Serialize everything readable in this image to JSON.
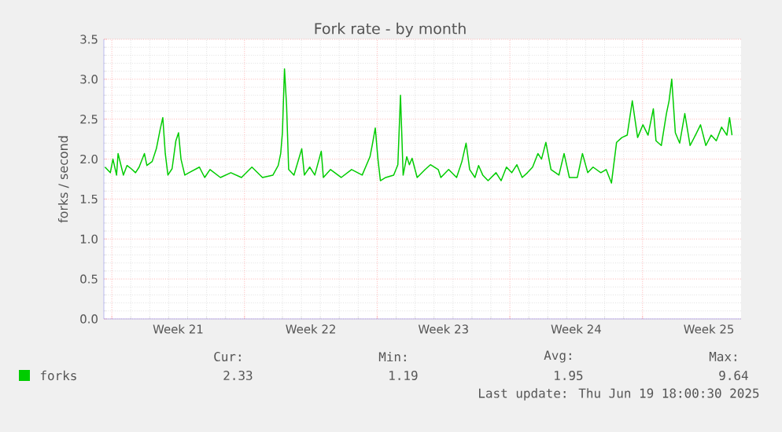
{
  "chart_data": {
    "type": "line",
    "title": "Fork rate - by month",
    "ylabel": "forks / second",
    "xlim": [
      "2025-05-17T13:55",
      "2025-06-20T04:48"
    ],
    "ylim": [
      0,
      3.5
    ],
    "xticks": [
      {
        "value": "2025-05-18T00:00",
        "label": null
      },
      {
        "value": "2025-05-21T12:00",
        "label": "Week 21"
      },
      {
        "value": "2025-05-25T00:00",
        "label": null
      },
      {
        "value": "2025-05-28T12:00",
        "label": "Week 22"
      },
      {
        "value": "2025-06-01T00:00",
        "label": null
      },
      {
        "value": "2025-06-04T12:00",
        "label": "Week 23"
      },
      {
        "value": "2025-06-08T00:00",
        "label": null
      },
      {
        "value": "2025-06-11T12:00",
        "label": "Week 24"
      },
      {
        "value": "2025-06-15T00:00",
        "label": null
      },
      {
        "value": "2025-06-18T12:00",
        "label": "Week 25"
      }
    ],
    "yticks": [
      {
        "value": 0,
        "label": "0.0"
      },
      0.5,
      {
        "value": 1,
        "label": "1.0"
      },
      1.5,
      {
        "value": 2,
        "label": "2.0"
      },
      2.5,
      {
        "value": 3,
        "label": "3.0"
      },
      3.5
    ],
    "grid": true,
    "legend": "bottom",
    "annotations": [
      "Cur:",
      "2.33",
      "Min:",
      "1.19",
      "Avg:",
      "1.95",
      "Max:",
      "9.64",
      "Last update: Thu Jun 19 18:00:30 2025"
    ],
    "series": [
      {
        "name": "forks",
        "color": "#00cc00",
        "x": [
          "2025-05-17T15:22",
          "2025-05-17T22:05",
          "2025-05-18T01:26",
          "2025-05-18T06:00",
          "2025-05-18T07:55",
          "2025-05-18T14:38",
          "2025-05-18T19:12",
          "2025-05-19T00:29",
          "2025-05-19T06:00",
          "2025-05-19T10:34",
          "2025-05-19T17:17",
          "2025-05-19T20:24",
          "2025-05-20T03:07",
          "2025-05-20T08:24",
          "2025-05-20T13:12",
          "2025-05-20T16:34",
          "2025-05-20T19:41",
          "2025-05-20T23:02",
          "2025-05-21T04:19",
          "2025-05-21T09:07",
          "2025-05-21T12:29",
          "2025-05-21T15:36",
          "2025-05-21T20:24",
          "2025-05-22T01:41",
          "2025-05-22T14:53",
          "2025-05-22T21:36",
          "2025-05-23T04:19",
          "2025-05-23T17:31",
          "2025-05-24T06:43",
          "2025-05-24T20:10",
          "2025-05-25T09:22",
          "2025-05-25T22:48",
          "2025-05-26T12:00",
          "2025-05-26T18:43",
          "2025-05-26T21:50",
          "2025-05-27T00:00",
          "2025-05-27T02:38",
          "2025-05-27T05:17",
          "2025-05-27T07:55",
          "2025-05-27T14:38",
          "2025-05-28T00:29",
          "2025-05-28T03:50",
          "2025-05-28T10:34",
          "2025-05-28T17:02",
          "2025-05-29T01:12",
          "2025-05-29T03:50",
          "2025-05-29T12:58",
          "2025-05-30T02:24",
          "2025-05-30T15:36",
          "2025-05-31T05:02",
          "2025-05-31T14:53",
          "2025-05-31T18:14",
          "2025-05-31T21:36",
          "2025-06-01T00:58",
          "2025-06-01T04:05",
          "2025-06-01T10:48",
          "2025-06-01T20:53",
          "2025-06-02T02:10",
          "2025-06-02T05:31",
          "2025-06-02T08:53",
          "2025-06-02T13:26",
          "2025-06-02T16:48",
          "2025-06-02T20:10",
          "2025-06-03T02:38",
          "2025-06-03T12:43",
          "2025-06-03T19:26",
          "2025-06-04T05:17",
          "2025-06-04T08:38",
          "2025-06-04T18:29",
          "2025-06-05T04:34",
          "2025-06-05T11:17",
          "2025-06-05T16:34",
          "2025-06-05T21:07",
          "2025-06-06T03:50",
          "2025-06-06T08:24",
          "2025-06-06T13:41",
          "2025-06-06T20:24",
          "2025-06-07T06:29",
          "2025-06-07T12:58",
          "2025-06-07T19:41",
          "2025-06-08T02:24",
          "2025-06-08T08:53",
          "2025-06-08T15:36",
          "2025-06-08T22:19",
          "2025-06-09T04:48",
          "2025-06-09T11:31",
          "2025-06-09T16:05",
          "2025-06-09T21:36",
          "2025-06-10T04:05",
          "2025-06-10T14:10",
          "2025-06-10T20:38",
          "2025-06-11T03:22",
          "2025-06-11T13:26",
          "2025-06-11T19:55",
          "2025-06-12T02:38",
          "2025-06-12T09:22",
          "2025-06-12T19:12",
          "2025-06-13T01:55",
          "2025-06-13T08:38",
          "2025-06-13T15:07",
          "2025-06-13T21:50",
          "2025-06-14T04:34",
          "2025-06-14T11:02",
          "2025-06-14T17:46",
          "2025-06-15T00:29",
          "2025-06-15T06:58",
          "2025-06-15T13:41",
          "2025-06-15T17:02",
          "2025-06-15T23:46",
          "2025-06-16T06:14",
          "2025-06-16T09:36",
          "2025-06-16T12:58",
          "2025-06-16T17:31",
          "2025-06-16T23:02",
          "2025-06-17T05:31",
          "2025-06-17T12:14",
          "2025-06-17T18:58",
          "2025-06-18T01:26",
          "2025-06-18T08:10",
          "2025-06-18T14:53",
          "2025-06-18T21:22",
          "2025-06-19T04:05",
          "2025-06-19T10:48",
          "2025-06-19T14:10",
          "2025-06-19T17:17"
        ],
        "values": [
          1.9,
          1.83,
          2.0,
          1.8,
          2.07,
          1.8,
          1.92,
          1.88,
          1.83,
          1.9,
          2.07,
          1.92,
          1.97,
          2.13,
          2.37,
          2.52,
          2.07,
          1.8,
          1.88,
          2.23,
          2.33,
          2.0,
          1.8,
          1.83,
          1.9,
          1.77,
          1.87,
          1.77,
          1.83,
          1.77,
          1.9,
          1.77,
          1.8,
          1.92,
          2.07,
          2.33,
          3.13,
          2.67,
          1.87,
          1.8,
          2.13,
          1.8,
          1.9,
          1.8,
          2.1,
          1.77,
          1.87,
          1.77,
          1.87,
          1.8,
          2.03,
          2.2,
          2.39,
          2.0,
          1.73,
          1.77,
          1.8,
          1.93,
          2.8,
          1.8,
          2.03,
          1.93,
          2.01,
          1.77,
          1.87,
          1.93,
          1.87,
          1.77,
          1.87,
          1.77,
          1.97,
          2.2,
          1.87,
          1.77,
          1.92,
          1.8,
          1.73,
          1.83,
          1.73,
          1.9,
          1.83,
          1.93,
          1.77,
          1.83,
          1.9,
          2.07,
          2.0,
          2.21,
          1.87,
          1.8,
          2.07,
          1.77,
          1.77,
          2.07,
          1.83,
          1.9,
          1.83,
          1.87,
          1.7,
          2.21,
          2.27,
          2.3,
          2.73,
          2.27,
          2.43,
          2.3,
          2.63,
          2.23,
          2.17,
          2.57,
          2.73,
          3.0,
          2.33,
          2.2,
          2.57,
          2.17,
          2.3,
          2.43,
          2.17,
          2.3,
          2.23,
          2.4,
          2.3,
          2.52,
          2.3
        ]
      }
    ]
  }
}
